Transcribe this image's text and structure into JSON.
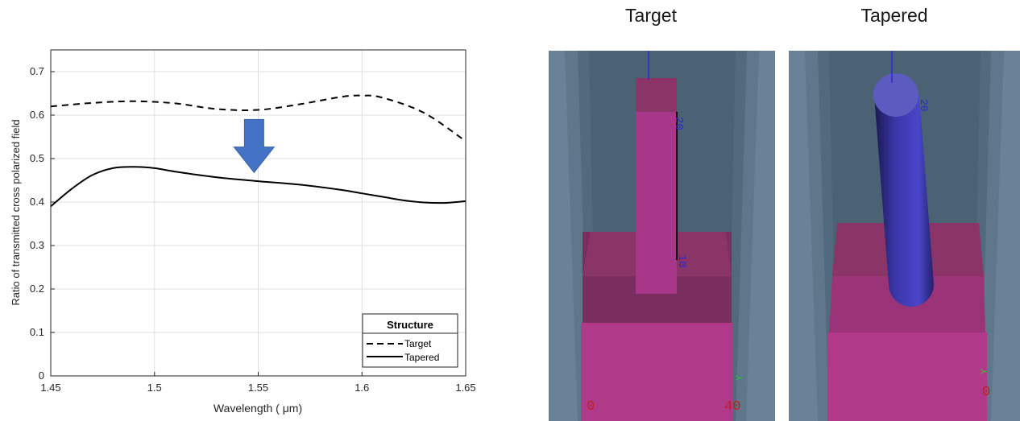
{
  "chart_data": {
    "type": "line",
    "xlabel": "Wavelength ( μm)",
    "ylabel": "Ratio of transmitted cross polarized field",
    "xlim": [
      1.45,
      1.65
    ],
    "ylim": [
      0,
      0.75
    ],
    "xticks": [
      1.45,
      1.5,
      1.55,
      1.6,
      1.65
    ],
    "xtick_labels": [
      "1.45",
      "1.5",
      "1.55",
      "1.6",
      "1.65"
    ],
    "yticks": [
      0,
      0.1,
      0.2,
      0.3,
      0.4,
      0.5,
      0.6,
      0.7
    ],
    "ytick_labels": [
      "0",
      "0.1",
      "0.2",
      "0.3",
      "0.4",
      "0.5",
      "0.6",
      "0.7"
    ],
    "grid": true,
    "legend": {
      "title": "Structure",
      "placement": "bottom-right"
    },
    "series": [
      {
        "name": "Target",
        "style": "dashed",
        "color": "#000000",
        "x": [
          1.45,
          1.47,
          1.49,
          1.51,
          1.53,
          1.55,
          1.57,
          1.59,
          1.6,
          1.61,
          1.63,
          1.65
        ],
        "y": [
          0.62,
          0.628,
          0.632,
          0.627,
          0.614,
          0.612,
          0.625,
          0.642,
          0.645,
          0.64,
          0.605,
          0.54
        ]
      },
      {
        "name": "Tapered",
        "style": "solid",
        "color": "#000000",
        "x": [
          1.45,
          1.46,
          1.47,
          1.48,
          1.49,
          1.5,
          1.51,
          1.53,
          1.55,
          1.57,
          1.59,
          1.6,
          1.61,
          1.62,
          1.63,
          1.64,
          1.65
        ],
        "y": [
          0.39,
          0.43,
          0.462,
          0.478,
          0.481,
          0.478,
          0.47,
          0.457,
          0.448,
          0.44,
          0.428,
          0.42,
          0.412,
          0.404,
          0.399,
          0.398,
          0.402
        ]
      }
    ],
    "annotation": {
      "shape": "down-arrow",
      "color": "#4472c4",
      "x": 1.548,
      "y_top": 0.59,
      "y_bottom": 0.468
    }
  },
  "panels": [
    {
      "title": "Target",
      "tick_labels": [
        "20",
        "10",
        "0",
        "40"
      ]
    },
    {
      "title": "Tapered",
      "tick_labels": [
        "20",
        "0"
      ]
    }
  ]
}
